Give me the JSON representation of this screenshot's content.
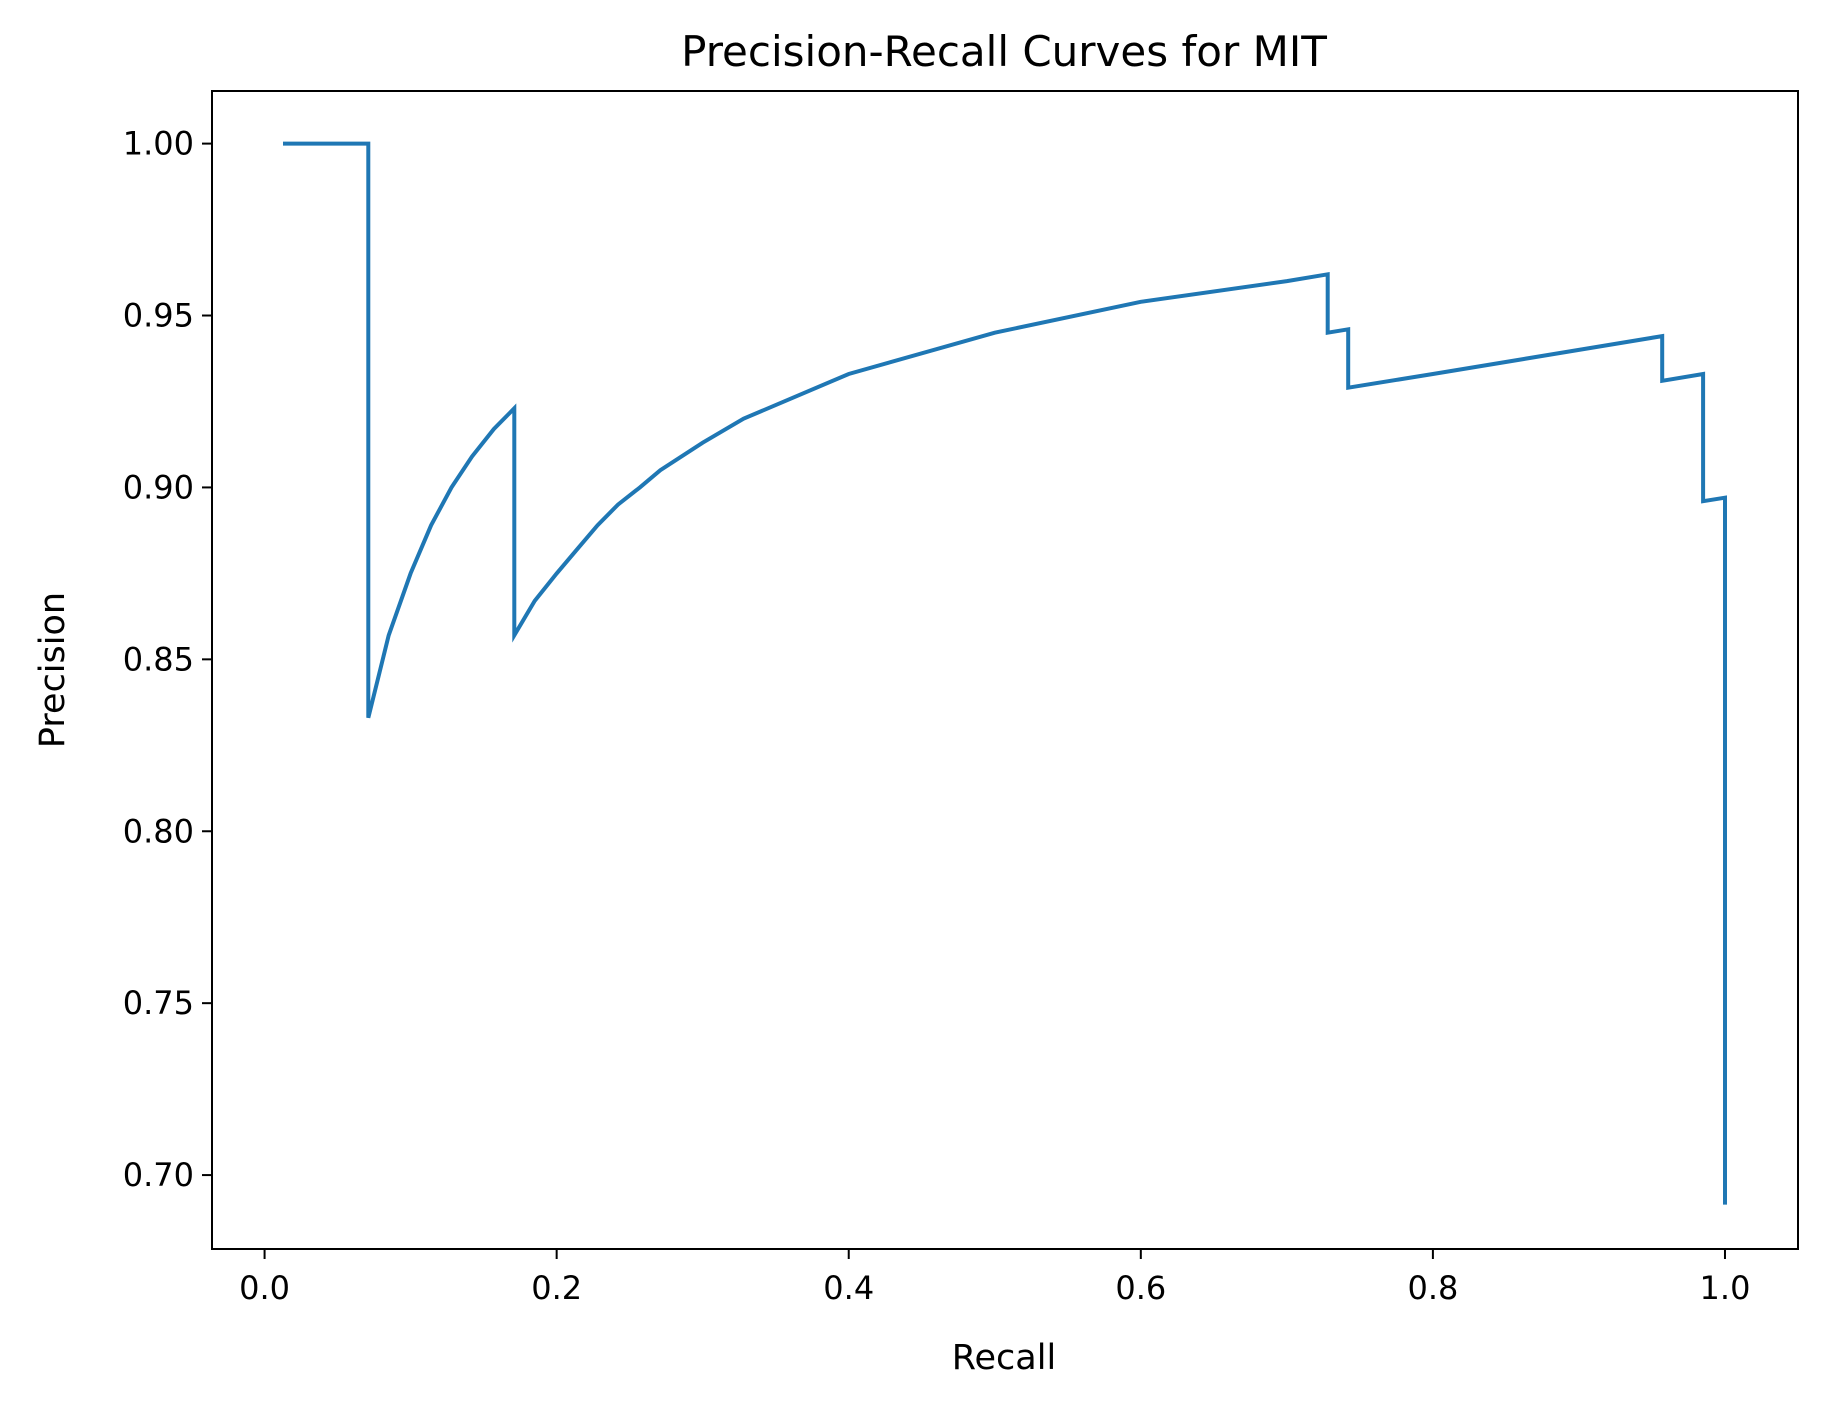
{
  "chart_data": {
    "type": "line",
    "title": "Precision-Recall Curves for MIT",
    "xlabel": "Recall",
    "ylabel": "Precision",
    "xlim": [
      -0.036,
      1.05
    ],
    "ylim": [
      0.6785,
      1.0153
    ],
    "x_ticks": [
      {
        "value": 0.0,
        "label": "0.0"
      },
      {
        "value": 0.2,
        "label": "0.2"
      },
      {
        "value": 0.4,
        "label": "0.4"
      },
      {
        "value": 0.6,
        "label": "0.6"
      },
      {
        "value": 0.8,
        "label": "0.8"
      },
      {
        "value": 1.0,
        "label": "1.0"
      }
    ],
    "y_ticks": [
      {
        "value": 0.7,
        "label": "0.70"
      },
      {
        "value": 0.75,
        "label": "0.75"
      },
      {
        "value": 0.8,
        "label": "0.80"
      },
      {
        "value": 0.85,
        "label": "0.85"
      },
      {
        "value": 0.9,
        "label": "0.90"
      },
      {
        "value": 0.95,
        "label": "0.95"
      },
      {
        "value": 1.0,
        "label": "1.00"
      }
    ],
    "grid": false,
    "legend": "none",
    "series": [
      {
        "color": "#1f77b4",
        "x": [
          0.014,
          0.071,
          0.071,
          0.085,
          0.1,
          0.114,
          0.128,
          0.142,
          0.157,
          0.171,
          0.171,
          0.185,
          0.2,
          0.214,
          0.228,
          0.242,
          0.257,
          0.271,
          0.3,
          0.328,
          0.4,
          0.5,
          0.6,
          0.7,
          0.728,
          0.728,
          0.742,
          0.742,
          0.8,
          0.9,
          0.957,
          0.957,
          0.985,
          0.985,
          1.0,
          1.0
        ],
        "y": [
          1.0,
          1.0,
          0.833,
          0.857,
          0.875,
          0.889,
          0.9,
          0.909,
          0.917,
          0.923,
          0.857,
          0.867,
          0.875,
          0.882,
          0.889,
          0.895,
          0.9,
          0.905,
          0.913,
          0.92,
          0.933,
          0.945,
          0.954,
          0.96,
          0.962,
          0.945,
          0.946,
          0.929,
          0.933,
          0.94,
          0.944,
          0.931,
          0.933,
          0.896,
          0.897,
          0.692
        ]
      }
    ]
  }
}
